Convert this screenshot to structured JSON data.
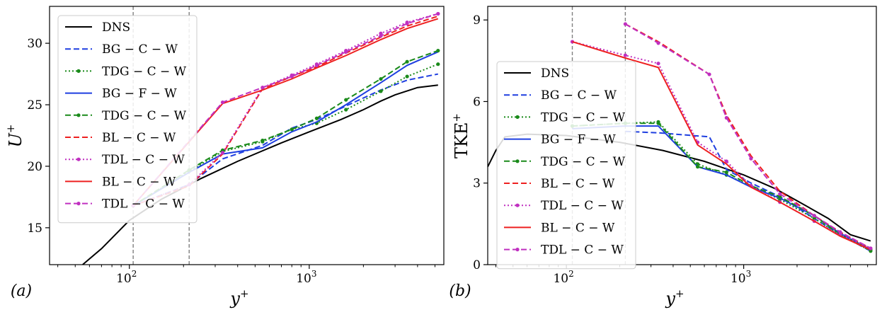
{
  "chart_data": [
    {
      "type": "line",
      "panel_tag": "(a)",
      "xlabel": "y+",
      "ylabel": "U+",
      "xscale": "log",
      "xlim": [
        36,
        5600
      ],
      "ylim": [
        12,
        33
      ],
      "xticks": [
        100,
        1000
      ],
      "xtick_labels": [
        "10",
        "10"
      ],
      "xtick_exps": [
        "2",
        "3"
      ],
      "yticks": [
        15,
        20,
        25,
        30
      ],
      "ytick_labels": [
        "15",
        "20",
        "25",
        "30"
      ],
      "vlines": [
        105,
        215
      ],
      "legend": {
        "location": "upper-left"
      },
      "series": [
        {
          "name": "DNS",
          "color": "#000000",
          "dash": "solid",
          "marker": false,
          "points": [
            [
              55,
              12.0
            ],
            [
              70,
              13.3
            ],
            [
              100,
              15.6
            ],
            [
              150,
              17.3
            ],
            [
              250,
              19.0
            ],
            [
              400,
              20.4
            ],
            [
              700,
              21.9
            ],
            [
              1000,
              22.8
            ],
            [
              1500,
              23.8
            ],
            [
              2000,
              24.6
            ],
            [
              2500,
              25.3
            ],
            [
              3000,
              25.8
            ],
            [
              4000,
              26.4
            ],
            [
              5200,
              26.6
            ]
          ]
        },
        {
          "name": "BG - C - W",
          "color": "#1f3fe0",
          "dash": "dash",
          "marker": false,
          "points": [
            [
              105,
              16.8
            ],
            [
              215,
              18.5
            ],
            [
              330,
              20.6
            ],
            [
              550,
              21.7
            ],
            [
              800,
              23.1
            ],
            [
              1100,
              23.8
            ],
            [
              1600,
              24.9
            ],
            [
              2500,
              26.2
            ],
            [
              3500,
              27.0
            ],
            [
              5200,
              27.5
            ]
          ]
        },
        {
          "name": "TDG - C - W",
          "color": "#1a8a1a",
          "dash": "dot",
          "marker": true,
          "points": [
            [
              105,
              16.8
            ],
            [
              215,
              19.6
            ],
            [
              330,
              21.2
            ],
            [
              550,
              22.0
            ],
            [
              800,
              23.0
            ],
            [
              1100,
              23.5
            ],
            [
              1600,
              24.6
            ],
            [
              2500,
              26.1
            ],
            [
              3500,
              27.3
            ],
            [
              5200,
              28.3
            ]
          ]
        },
        {
          "name": "BG - F - W",
          "color": "#1f3fe0",
          "dash": "solid",
          "marker": false,
          "points": [
            [
              105,
              16.8
            ],
            [
              215,
              19.5
            ],
            [
              330,
              21.0
            ],
            [
              550,
              21.5
            ],
            [
              800,
              22.8
            ],
            [
              1100,
              23.6
            ],
            [
              1600,
              25.0
            ],
            [
              2500,
              26.8
            ],
            [
              3500,
              28.2
            ],
            [
              5200,
              29.3
            ]
          ]
        },
        {
          "name": "TDG - C - W",
          "color": "#1a8a1a",
          "dash": "dash",
          "marker": true,
          "points": [
            [
              105,
              16.8
            ],
            [
              215,
              19.7
            ],
            [
              330,
              21.3
            ],
            [
              550,
              22.1
            ],
            [
              800,
              23.0
            ],
            [
              1100,
              23.9
            ],
            [
              1600,
              25.4
            ],
            [
              2500,
              27.1
            ],
            [
              3500,
              28.5
            ],
            [
              5200,
              29.4
            ]
          ]
        },
        {
          "name": "BL - C - W",
          "color": "#ee2020",
          "dash": "dash",
          "marker": false,
          "points": [
            [
              105,
              16.8
            ],
            [
              215,
              18.4
            ],
            [
              330,
              21.0
            ],
            [
              550,
              26.3
            ],
            [
              800,
              27.3
            ],
            [
              1100,
              28.1
            ],
            [
              1600,
              29.2
            ],
            [
              2500,
              30.5
            ],
            [
              3500,
              31.4
            ],
            [
              5200,
              32.2
            ]
          ]
        },
        {
          "name": "TDL - C - W",
          "color": "#c030c0",
          "dash": "dot",
          "marker": true,
          "points": [
            [
              105,
              16.8
            ],
            [
              215,
              18.5
            ],
            [
              330,
              21.1
            ],
            [
              550,
              26.4
            ],
            [
              800,
              27.4
            ],
            [
              1100,
              28.3
            ],
            [
              1600,
              29.4
            ],
            [
              2500,
              30.8
            ],
            [
              3500,
              31.7
            ],
            [
              5200,
              32.4
            ]
          ]
        },
        {
          "name": "BL - C - W",
          "color": "#ee2020",
          "dash": "solid",
          "marker": false,
          "points": [
            [
              105,
              16.8
            ],
            [
              330,
              25.1
            ],
            [
              550,
              26.2
            ],
            [
              800,
              27.1
            ],
            [
              1100,
              28.0
            ],
            [
              1600,
              29.0
            ],
            [
              2500,
              30.3
            ],
            [
              3500,
              31.2
            ],
            [
              5200,
              32.0
            ]
          ]
        },
        {
          "name": "TDL - C - W",
          "color": "#c030c0",
          "dash": "dash",
          "marker": true,
          "points": [
            [
              105,
              16.8
            ],
            [
              330,
              25.2
            ],
            [
              550,
              26.4
            ],
            [
              800,
              27.3
            ],
            [
              1100,
              28.2
            ],
            [
              1600,
              29.3
            ],
            [
              2500,
              30.6
            ],
            [
              3500,
              31.6
            ],
            [
              5200,
              32.4
            ]
          ]
        }
      ]
    },
    {
      "type": "line",
      "panel_tag": "(b)",
      "xlabel": "y+",
      "ylabel": "TKE+",
      "xscale": "log",
      "xlim": [
        36,
        5600
      ],
      "ylim": [
        0,
        9.5
      ],
      "xticks": [
        100,
        1000
      ],
      "xtick_labels": [
        "10",
        "10"
      ],
      "xtick_exps": [
        "2",
        "3"
      ],
      "yticks": [
        0,
        3,
        6,
        9
      ],
      "ytick_labels": [
        "0",
        "3",
        "6",
        "9"
      ],
      "vlines": [
        108,
        215
      ],
      "legend": {
        "location": "center-left"
      },
      "series": [
        {
          "name": "DNS",
          "color": "#000000",
          "dash": "solid",
          "marker": false,
          "points": [
            [
              36,
              3.6
            ],
            [
              40,
              4.2
            ],
            [
              45,
              4.7
            ],
            [
              60,
              4.8
            ],
            [
              100,
              4.75
            ],
            [
              200,
              4.5
            ],
            [
              350,
              4.2
            ],
            [
              600,
              3.8
            ],
            [
              1000,
              3.3
            ],
            [
              1500,
              2.8
            ],
            [
              2000,
              2.35
            ],
            [
              3000,
              1.7
            ],
            [
              4000,
              1.1
            ],
            [
              5200,
              0.87
            ]
          ]
        },
        {
          "name": "BG - C - W",
          "color": "#1f3fe0",
          "dash": "dash",
          "marker": false,
          "points": [
            [
              215,
              4.9
            ],
            [
              330,
              4.85
            ],
            [
              640,
              4.7
            ],
            [
              800,
              3.5
            ],
            [
              1100,
              3.0
            ],
            [
              1600,
              2.5
            ],
            [
              2500,
              1.7
            ],
            [
              3500,
              1.1
            ],
            [
              5200,
              0.5
            ]
          ]
        },
        {
          "name": "TDG - C - W",
          "color": "#1a8a1a",
          "dash": "dot",
          "marker": true,
          "points": [
            [
              108,
              5.1
            ],
            [
              215,
              5.2
            ],
            [
              330,
              5.25
            ],
            [
              550,
              3.7
            ],
            [
              800,
              3.3
            ],
            [
              1100,
              2.9
            ],
            [
              1600,
              2.4
            ],
            [
              2500,
              1.7
            ],
            [
              3500,
              1.1
            ],
            [
              5200,
              0.5
            ]
          ]
        },
        {
          "name": "BG - F - W",
          "color": "#1f3fe0",
          "dash": "solid",
          "marker": false,
          "points": [
            [
              108,
              5.0
            ],
            [
              215,
              5.1
            ],
            [
              330,
              5.1
            ],
            [
              550,
              3.6
            ],
            [
              800,
              3.3
            ],
            [
              1100,
              2.85
            ],
            [
              1600,
              2.45
            ],
            [
              2500,
              1.8
            ],
            [
              3500,
              1.15
            ],
            [
              5200,
              0.55
            ]
          ]
        },
        {
          "name": "TDG - C - W",
          "color": "#1a8a1a",
          "dash": "dash",
          "marker": true,
          "points": [
            [
              108,
              5.1
            ],
            [
              215,
              5.2
            ],
            [
              330,
              5.2
            ],
            [
              550,
              3.6
            ],
            [
              800,
              3.4
            ],
            [
              1100,
              2.9
            ],
            [
              1600,
              2.5
            ],
            [
              2500,
              1.8
            ],
            [
              3500,
              1.1
            ],
            [
              5200,
              0.55
            ]
          ]
        },
        {
          "name": "BL - C - W",
          "color": "#ee2020",
          "dash": "dash",
          "marker": false,
          "points": [
            [
              215,
              8.85
            ],
            [
              330,
              8.2
            ],
            [
              640,
              7.0
            ],
            [
              800,
              5.5
            ],
            [
              1100,
              4.0
            ],
            [
              1600,
              2.7
            ],
            [
              2500,
              1.8
            ],
            [
              3500,
              1.2
            ],
            [
              5200,
              0.6
            ]
          ]
        },
        {
          "name": "TDL - C - W",
          "color": "#c030c0",
          "dash": "dot",
          "marker": true,
          "points": [
            [
              108,
              8.2
            ],
            [
              215,
              7.7
            ],
            [
              330,
              7.4
            ],
            [
              550,
              4.5
            ],
            [
              800,
              3.8
            ],
            [
              1100,
              2.9
            ],
            [
              1600,
              2.3
            ],
            [
              2500,
              1.6
            ],
            [
              3500,
              1.1
            ],
            [
              5200,
              0.6
            ]
          ]
        },
        {
          "name": "BL - C - W",
          "color": "#ee2020",
          "dash": "solid",
          "marker": false,
          "points": [
            [
              108,
              8.2
            ],
            [
              215,
              7.6
            ],
            [
              330,
              7.25
            ],
            [
              550,
              4.4
            ],
            [
              800,
              3.7
            ],
            [
              1100,
              2.85
            ],
            [
              1600,
              2.3
            ],
            [
              2500,
              1.6
            ],
            [
              3500,
              1.05
            ],
            [
              5200,
              0.55
            ]
          ]
        },
        {
          "name": "TDL - C - W",
          "color": "#c030c0",
          "dash": "dash",
          "marker": true,
          "points": [
            [
              215,
              8.85
            ],
            [
              330,
              8.15
            ],
            [
              640,
              7.0
            ],
            [
              800,
              5.4
            ],
            [
              1100,
              3.9
            ],
            [
              1600,
              2.6
            ],
            [
              2500,
              1.8
            ],
            [
              3500,
              1.2
            ],
            [
              5200,
              0.6
            ]
          ]
        }
      ]
    }
  ]
}
